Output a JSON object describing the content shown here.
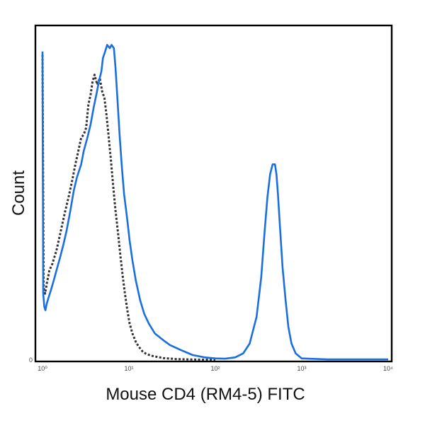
{
  "chart_data": {
    "type": "line",
    "title": "",
    "xlabel": "Mouse CD4 (RM4-5) FITC",
    "ylabel": "Count",
    "x_scale": "log",
    "xlim": [
      1,
      10000
    ],
    "ylim": [
      0,
      100
    ],
    "x_ticks": [
      {
        "value": 1,
        "label": "10⁰"
      },
      {
        "value": 10,
        "label": "10¹"
      },
      {
        "value": 100,
        "label": "10²"
      },
      {
        "value": 1000,
        "label": "10³"
      },
      {
        "value": 10000,
        "label": "10⁴"
      }
    ],
    "y_ticks": [
      {
        "value": 0,
        "label": "0"
      }
    ],
    "grid": false,
    "legend": "none",
    "series": [
      {
        "color": "#1a6fe0",
        "style": "solid",
        "x": [
          1.0,
          1.02,
          1.05,
          1.08,
          1.12,
          1.18,
          1.25,
          1.35,
          1.45,
          1.6,
          1.75,
          1.9,
          2.1,
          2.3,
          2.5,
          2.8,
          3.0,
          3.3,
          3.6,
          3.9,
          4.2,
          4.5,
          4.8,
          5.0,
          5.3,
          5.6,
          6.0,
          6.3,
          6.7,
          7.0,
          7.4,
          7.8,
          8.3,
          8.8,
          9.5,
          10.2,
          11.0,
          12.0,
          13.5,
          15.0,
          17.0,
          20.0,
          25.0,
          30.0,
          40.0,
          55.0,
          75.0,
          100.0,
          130.0,
          170.0,
          210.0,
          250.0,
          300.0,
          340.0,
          370.0,
          400.0,
          430.0,
          460.0,
          490.0,
          510.0,
          530.0,
          560.0,
          600.0,
          650.0,
          700.0,
          760.0,
          850.0,
          1000.0,
          2000.0,
          10000.0
        ],
        "y": [
          93,
          20,
          16,
          15,
          17,
          19,
          21,
          24,
          27,
          31,
          35,
          39,
          45,
          51,
          55,
          59,
          63,
          67,
          71,
          76,
          80,
          84,
          87,
          91,
          93,
          95,
          94,
          95,
          94,
          88,
          78,
          68,
          58,
          50,
          43,
          36,
          30,
          24,
          18,
          14,
          11,
          8,
          6,
          4.5,
          3,
          1.5,
          0.8,
          0.5,
          0.4,
          0.8,
          2,
          5,
          13,
          25,
          38,
          49,
          56,
          59,
          59,
          56,
          50,
          40,
          28,
          18,
          10,
          5,
          2,
          0.5,
          0.2,
          0.2
        ]
      },
      {
        "color": "#333333",
        "style": "dotted",
        "x": [
          1.0,
          1.03,
          1.07,
          1.12,
          1.2,
          1.3,
          1.45,
          1.6,
          1.8,
          2.0,
          2.2,
          2.4,
          2.6,
          2.8,
          3.0,
          3.2,
          3.4,
          3.6,
          3.8,
          4.0,
          4.3,
          4.6,
          4.9,
          5.2,
          5.5,
          5.8,
          6.2,
          6.6,
          7.0,
          7.5,
          8.0,
          8.5,
          9.0,
          9.6,
          10.2,
          11.0,
          12.0,
          13.0,
          14.5,
          16.0,
          19.0,
          25.0,
          35.0,
          50.0,
          70.0,
          100.0
        ],
        "y": [
          92,
          22,
          20,
          23,
          27,
          29,
          33,
          38,
          44,
          49,
          54,
          59,
          63,
          67,
          68,
          70,
          77,
          80,
          84,
          86,
          83,
          85,
          81,
          79,
          74,
          68,
          60,
          52,
          45,
          38,
          31,
          25,
          20,
          15,
          11,
          8,
          5.5,
          4,
          2.5,
          1.8,
          1.2,
          0.6,
          0.3,
          0.2,
          0.1,
          0.1
        ]
      }
    ]
  }
}
